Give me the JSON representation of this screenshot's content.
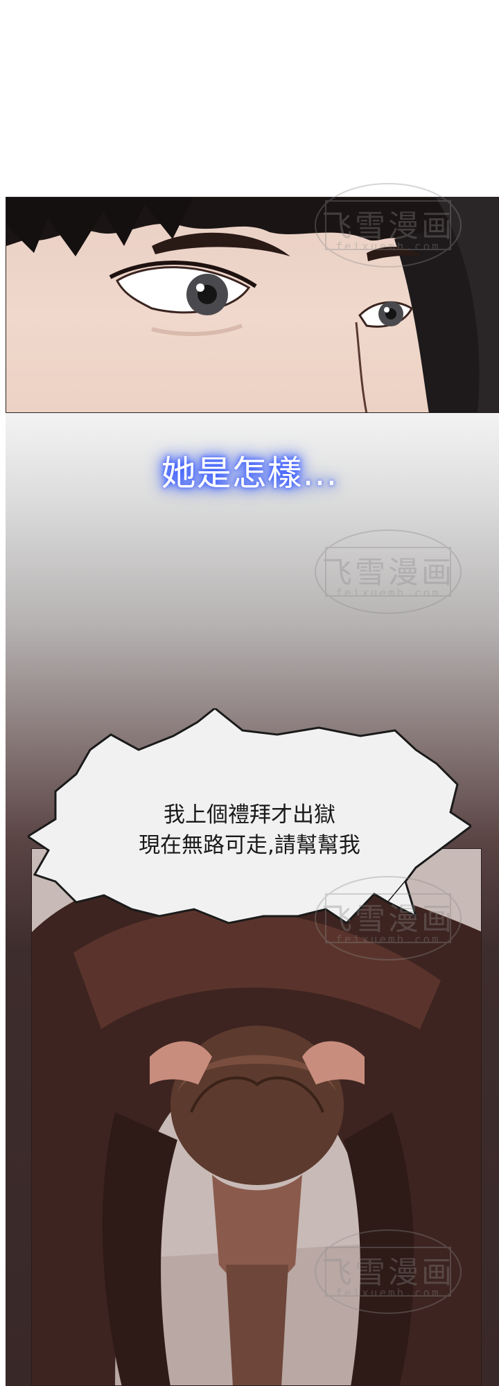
{
  "narration": {
    "text": "她是怎樣..."
  },
  "speech_bubble": {
    "line_1": "我上個禮拜才出獄",
    "line_2": "現在無路可走,請幫幫我"
  },
  "watermark": {
    "title": "飞雪漫画",
    "site": "feixuemh.com"
  },
  "colors": {
    "narration_glow": "#2f54ff",
    "skin": "#f0d8cc",
    "jacket": "#4a2a24",
    "hair": "#1a1414"
  }
}
